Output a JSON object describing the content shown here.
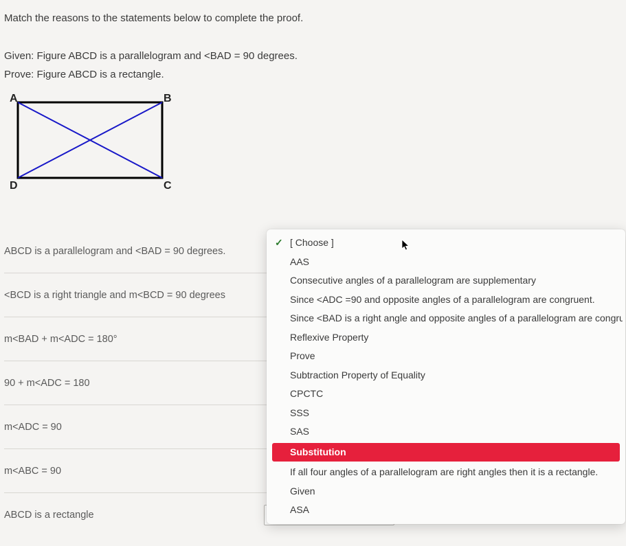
{
  "instruction": "Match the reasons to the statements below to complete the proof.",
  "given_label": "Given:",
  "given_text": "  Figure ABCD is a parallelogram and <BAD = 90 degrees.",
  "prove_label": "Prove:",
  "prove_text": "  Figure ABCD is a rectangle.",
  "figure": {
    "A": "A",
    "B": "B",
    "C": "C",
    "D": "D",
    "rect_stroke": "#000000",
    "diag_stroke": "#1818c8",
    "rect_width": 210,
    "rect_height": 110
  },
  "statements": [
    "ABCD is a parallelogram and <BAD = 90 degrees.",
    "<BCD is a right triangle and m<BCD = 90 degrees",
    "m<BAD + m<ADC = 180°",
    "90 + m<ADC = 180",
    "m<ADC = 90",
    "m<ABC = 90",
    "ABCD is a rectangle"
  ],
  "choose_placeholder": "[ Choose ]",
  "dropdown": {
    "selected_index": 0,
    "highlight_index": 12,
    "highlight_bg": "#e6203c",
    "options": [
      "[ Choose ]",
      "AAS",
      "Consecutive angles of a parallelogram are supplementary",
      "Since <ADC =90 and opposite angles of a parallelogram are congruent.",
      "Since <BAD is a right angle and opposite angles of a parallelogram are congruent",
      "Reflexive Property",
      "Prove",
      "Subtraction Property of Equality",
      "CPCTC",
      "SSS",
      "SAS",
      "Substitution",
      "If all four angles of a parallelogram are right angles then it is a rectangle.",
      "Given",
      "ASA"
    ]
  }
}
